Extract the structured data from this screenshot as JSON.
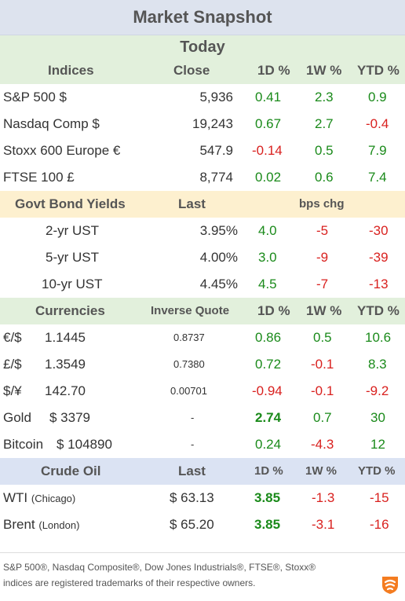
{
  "title": "Market Snapshot",
  "subtitle": "Today",
  "indices": {
    "header": {
      "name": "Indices",
      "close": "Close",
      "d1": "1D %",
      "w1": "1W %",
      "ytd": "YTD %"
    },
    "rows": [
      {
        "name": "S&P 500  $",
        "close": "5,936",
        "d1": "0.41",
        "w1": "2.3",
        "ytd": "0.9"
      },
      {
        "name": "Nasdaq Comp  $",
        "close": "19,243",
        "d1": "0.67",
        "w1": "2.7",
        "ytd": "-0.4"
      },
      {
        "name": "Stoxx 600 Europe  €",
        "close": "547.9",
        "d1": "-0.14",
        "w1": "0.5",
        "ytd": "7.9"
      },
      {
        "name": "FTSE 100  £",
        "close": "8,774",
        "d1": "0.02",
        "w1": "0.6",
        "ytd": "7.4"
      }
    ]
  },
  "bonds": {
    "header": {
      "name": "Govt Bond Yields",
      "last": "Last",
      "chg": "bps chg"
    },
    "rows": [
      {
        "name": "2-yr UST",
        "last": "3.95%",
        "d1": "4.0",
        "w1": "-5",
        "ytd": "-30"
      },
      {
        "name": "5-yr UST",
        "last": "4.00%",
        "d1": "3.0",
        "w1": "-9",
        "ytd": "-39"
      },
      {
        "name": "10-yr UST",
        "last": "4.45%",
        "d1": "4.5",
        "w1": "-7",
        "ytd": "-13"
      }
    ]
  },
  "currencies": {
    "header": {
      "name": "Currencies",
      "inverse": "Inverse Quote",
      "d1": "1D %",
      "w1": "1W %",
      "ytd": "YTD %"
    },
    "rows": [
      {
        "sym": "€/$",
        "val": "1.1445",
        "inv": "0.8737",
        "d1": "0.86",
        "w1": "0.5",
        "ytd": "10.6"
      },
      {
        "sym": "£/$",
        "val": "1.3549",
        "inv": "0.7380",
        "d1": "0.72",
        "w1": "-0.1",
        "ytd": "8.3"
      },
      {
        "sym": "$/¥",
        "val": "142.70",
        "inv": "0.00701",
        "d1": "-0.94",
        "w1": "-0.1",
        "ytd": "-9.2"
      },
      {
        "sym": "Gold",
        "val": "$ 3379",
        "inv": "-",
        "d1": "2.74",
        "w1": "0.7",
        "ytd": "30"
      },
      {
        "sym": "Bitcoin",
        "val": "$ 104890",
        "inv": "-",
        "d1": "0.24",
        "w1": "-4.3",
        "ytd": "12"
      }
    ]
  },
  "crude": {
    "header": {
      "name": "Crude Oil",
      "last": "Last",
      "d1": "1D %",
      "w1": "1W %",
      "ytd": "YTD %"
    },
    "rows": [
      {
        "name": "WTI",
        "loc": "(Chicago)",
        "last": "$ 63.13",
        "d1": "3.85",
        "w1": "-1.3",
        "ytd": "-15"
      },
      {
        "name": "Brent",
        "loc": "(London)",
        "last": "$ 65.20",
        "d1": "3.85",
        "w1": "-3.1",
        "ytd": "-16"
      }
    ]
  },
  "footnote": {
    "line1": "S&P 500®, Nasdaq Composite®, Dow Jones Industrials®, FTSE®, Stoxx®",
    "line2": "indices are registered trademarks of their respective owners."
  },
  "colors": {
    "positive": "#1a8a1a",
    "negative": "#d9211f",
    "logo": "#f47c20"
  },
  "logo_icon": "brand-logo-icon"
}
